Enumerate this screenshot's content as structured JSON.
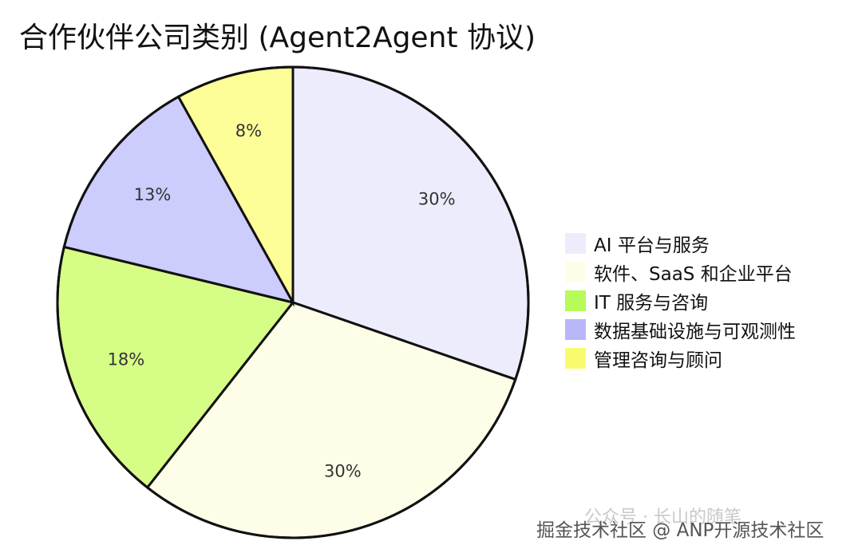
{
  "chart_data": {
    "type": "pie",
    "title": "合作伙伴公司类别 (Agent2Agent 协议)",
    "slices": [
      {
        "label": "AI 平台与服务",
        "value": 30,
        "display": "30%",
        "color": "#ececfd"
      },
      {
        "label": "软件、SaaS 和企业平台",
        "value": 30,
        "display": "30%",
        "color": "#fefee8"
      },
      {
        "label": "IT 服务与咨询",
        "value": 18,
        "display": "18%",
        "color": "#d6fe86"
      },
      {
        "label": "数据基础设施与可观测性",
        "value": 13,
        "display": "13%",
        "color": "#ccccfd"
      },
      {
        "label": "管理咨询与顾问",
        "value": 8,
        "display": "8%",
        "color": "#fefe99"
      }
    ],
    "legend_position": "right",
    "legend_colors": [
      "#ececfd",
      "#fefee8",
      "#b7fa5a",
      "#b8b8f8",
      "#fafa6e"
    ]
  },
  "watermark": {
    "wechat": "公众号 · 长山的随笔",
    "site": "掘金技术社区 @ ANP开源技术社区"
  }
}
